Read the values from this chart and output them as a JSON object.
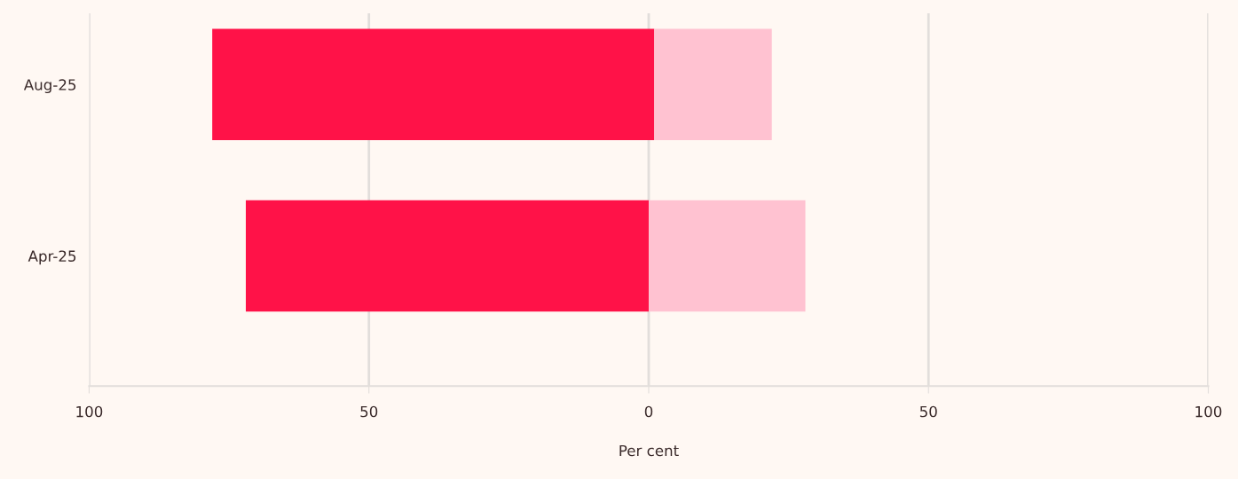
{
  "chart_data": {
    "type": "bar",
    "orientation": "horizontal",
    "xlabel": "Per cent",
    "categories": [
      "Aug-25",
      "Apr-25"
    ],
    "series": [
      {
        "color": "#ff1248",
        "base": [
          -78,
          -72
        ],
        "values": [
          79,
          72
        ]
      },
      {
        "color": "#ffc2d1",
        "base": [
          1,
          0
        ],
        "values": [
          21,
          28
        ]
      }
    ],
    "xlim": [
      -100,
      100
    ],
    "xticks": [
      {
        "value": -100,
        "label": "100"
      },
      {
        "value": -50,
        "label": "50"
      },
      0,
      50,
      100
    ],
    "grid": "x"
  }
}
